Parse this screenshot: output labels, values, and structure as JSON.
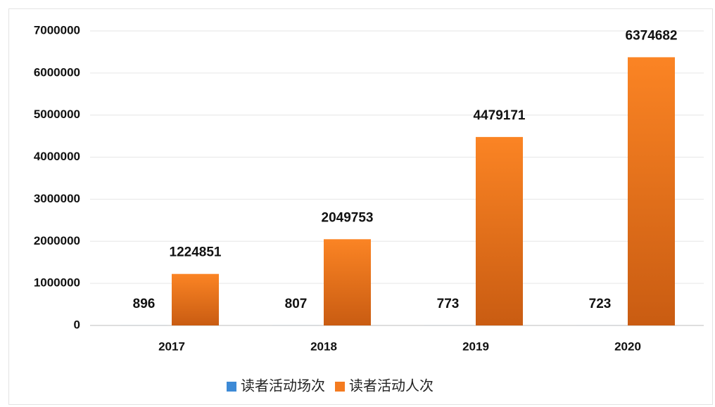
{
  "chart_data": {
    "type": "bar",
    "categories": [
      "2017",
      "2018",
      "2019",
      "2020"
    ],
    "series": [
      {
        "name": "读者活动场次",
        "color": "#3d8ad6",
        "values": [
          896,
          807,
          773,
          723
        ]
      },
      {
        "name": "读者活动人次",
        "color": "#f47b20",
        "values": [
          1224851,
          2049753,
          4479171,
          6374682
        ]
      }
    ],
    "ylim": [
      0,
      7000000
    ],
    "yticks": [
      0,
      1000000,
      2000000,
      3000000,
      4000000,
      5000000,
      6000000,
      7000000
    ],
    "grid": true,
    "legend": "bottom"
  }
}
